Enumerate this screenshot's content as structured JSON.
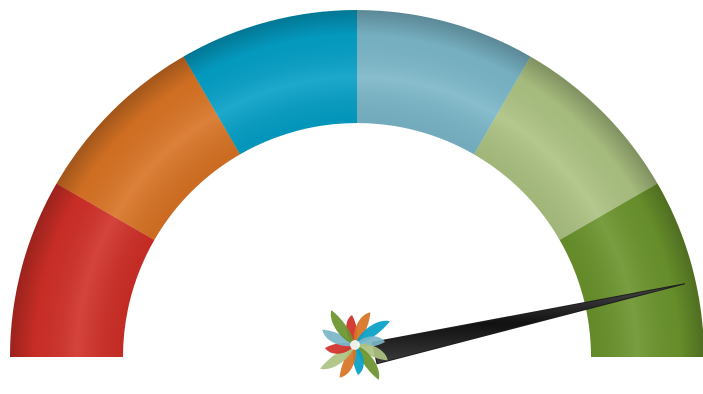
{
  "gauge": {
    "segments": [
      {
        "name": "red",
        "color": "#cf2f27"
      },
      {
        "name": "orange",
        "color": "#d87324"
      },
      {
        "name": "blue",
        "color": "#049fc6"
      },
      {
        "name": "light-blue",
        "color": "#7ab6c8"
      },
      {
        "name": "light-green",
        "color": "#acc282"
      },
      {
        "name": "green",
        "color": "#6a932c"
      }
    ],
    "needle_level_fraction": 0.93,
    "needle_color": "#1e1e1e",
    "hub_icon": "pinwheel-logo-icon",
    "hub_petal_colors": [
      "#cf2f27",
      "#d87324",
      "#049fc6",
      "#7ab6c8",
      "#acc282",
      "#6a932c",
      "#049fc6",
      "#d87324",
      "#acc282",
      "#cf2f27",
      "#7ab6c8",
      "#6a932c"
    ]
  }
}
